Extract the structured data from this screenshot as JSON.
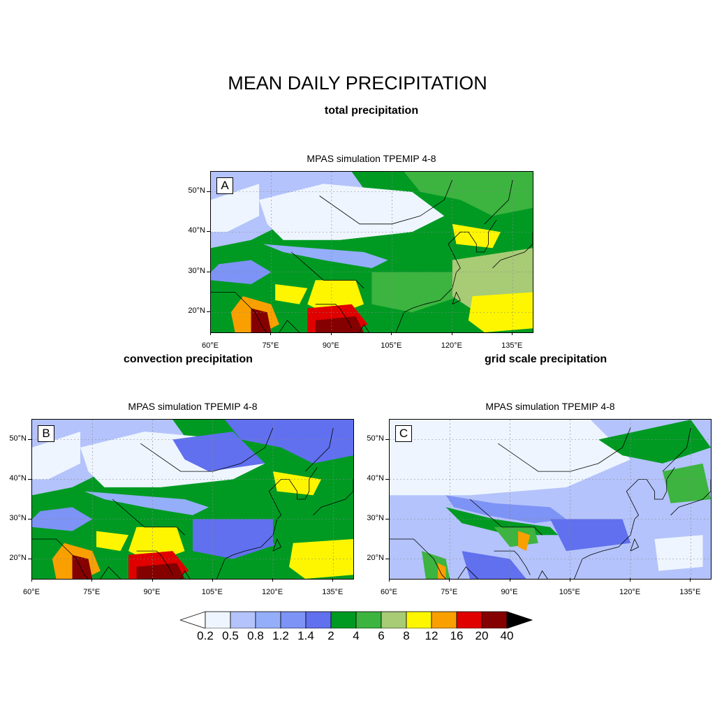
{
  "title": "MEAN DAILY PRECIPITATION",
  "subtitle": "total precipitation",
  "section_labels": {
    "convection": "convection precipitation",
    "grid_scale": "grid scale precipitation"
  },
  "panels": [
    {
      "letter": "A",
      "title": "MPAS simulation TPEMIP 4-8"
    },
    {
      "letter": "B",
      "title": "MPAS simulation TPEMIP 4-8"
    },
    {
      "letter": "C",
      "title": "MPAS simulation TPEMIP 4-8"
    }
  ],
  "lat_labels": [
    "50°N",
    "40°N",
    "30°N",
    "20°N"
  ],
  "lon_labels": [
    "60°E",
    "75°E",
    "90°E",
    "105°E",
    "120°E",
    "135°E"
  ],
  "colorbar": {
    "labels": [
      "0.2",
      "0.5",
      "0.8",
      "1.2",
      "1.4",
      "2",
      "4",
      "6",
      "8",
      "12",
      "16",
      "20",
      "40"
    ],
    "colors": [
      "#ffffff",
      "#eef5ff",
      "#b4c3fb",
      "#94aefa",
      "#7d93f5",
      "#6170ee",
      "#009a23",
      "#3cb43f",
      "#a8cb76",
      "#fdf600",
      "#f9a000",
      "#e00000",
      "#850000",
      "#000000"
    ]
  }
}
